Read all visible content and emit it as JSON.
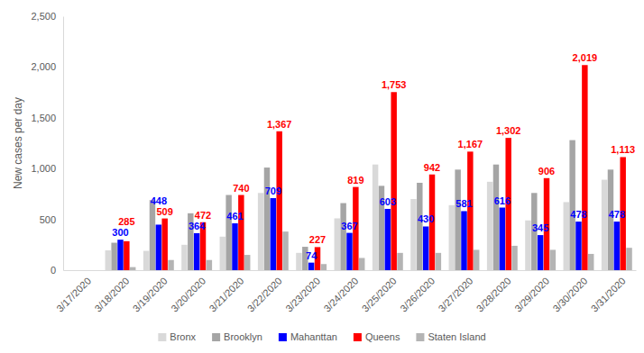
{
  "chart_data": {
    "type": "bar",
    "y_label": "New cases per day",
    "categories": [
      "3/17/2020",
      "3/18/2020",
      "3/19/2020",
      "3/20/2020",
      "3/21/2020",
      "3/22/2020",
      "3/23/2020",
      "3/24/2020",
      "3/25/2020",
      "3/26/2020",
      "3/27/2020",
      "3/28/2020",
      "3/29/2020",
      "3/30/2020",
      "3/31/2020"
    ],
    "series": [
      {
        "name": "Bronx",
        "color": "#d9d9d9",
        "values": [
          null,
          195,
          190,
          250,
          330,
          760,
          170,
          510,
          1040,
          700,
          640,
          870,
          490,
          670,
          890
        ]
      },
      {
        "name": "Brooklyn",
        "color": "#a5a5a5",
        "values": [
          null,
          270,
          690,
          560,
          740,
          1010,
          230,
          660,
          830,
          860,
          990,
          1040,
          760,
          1280,
          990
        ]
      },
      {
        "name": "Mahanttan",
        "color": "#0000ff",
        "data_labels": true,
        "values": [
          null,
          300,
          448,
          364,
          461,
          709,
          74,
          367,
          603,
          430,
          581,
          616,
          345,
          478,
          478
        ]
      },
      {
        "name": "Queens",
        "color": "#ff0000",
        "data_labels": true,
        "values": [
          null,
          285,
          509,
          472,
          740,
          1367,
          227,
          819,
          1753,
          942,
          1167,
          1302,
          906,
          2019,
          1113
        ],
        "value_labels": [
          null,
          "285",
          "509",
          "472",
          "740",
          "1,367",
          "227",
          "819",
          "1,753",
          "942",
          "1,167",
          "1,302",
          "906",
          "2,019",
          "1,113"
        ]
      },
      {
        "name": "Staten Island",
        "color": "#b4b4b4",
        "values": [
          null,
          30,
          100,
          100,
          150,
          380,
          60,
          120,
          170,
          170,
          200,
          240,
          200,
          160,
          220
        ]
      }
    ],
    "ylim": [
      0,
      2500
    ],
    "yticks": [
      0,
      500,
      {
        "value": 1000,
        "label": "1,000"
      },
      {
        "value": 1500,
        "label": "1,500"
      },
      {
        "value": 2000,
        "label": "2,000"
      },
      {
        "value": 2500,
        "label": "2,500"
      }
    ],
    "grid": false,
    "legend": "bottom"
  }
}
